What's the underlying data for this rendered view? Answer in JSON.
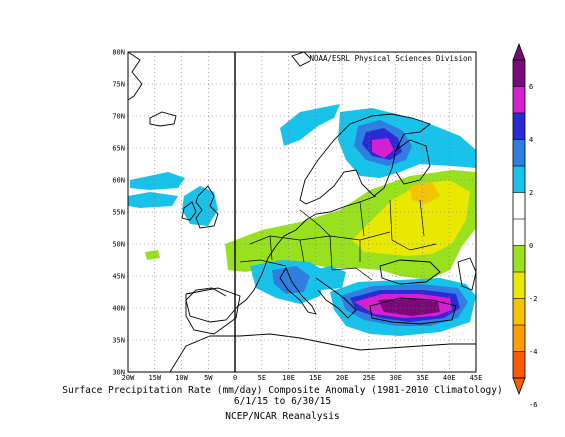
{
  "credit": "NOAA/ESRL Physical Sciences Division",
  "lat_labels": [
    "80N",
    "75N",
    "70N",
    "65N",
    "60N",
    "55N",
    "50N",
    "45N",
    "40N",
    "35N",
    "30N"
  ],
  "lon_labels": [
    "20W",
    "15W",
    "10W",
    "5W",
    "0",
    "5E",
    "10E",
    "15E",
    "20E",
    "25E",
    "30E",
    "35E",
    "40E",
    "45E"
  ],
  "colorbar": {
    "ticks": [
      "6",
      "4",
      "2",
      "0",
      "-2",
      "-4",
      "-6"
    ],
    "colors": [
      "#7a0a7a",
      "#d61fd0",
      "#2a2ad6",
      "#2f7fe0",
      "#17c3ea",
      "#ffffff",
      "#ffffff",
      "#99e01f",
      "#e8e800",
      "#f5c400",
      "#ff9d00",
      "#ff5a00"
    ]
  },
  "caption": {
    "line1": "Surface Precipitation Rate (mm/day) Composite Anomaly (1981-2010 Climatology)",
    "line2": "6/1/15 to 6/30/15",
    "line3": "NCEP/NCAR Reanalysis"
  },
  "colors": {
    "cyan": "#17c3ea",
    "blue": "#2f7fe0",
    "darkblue": "#2a2ad6",
    "green": "#99e01f",
    "yellow": "#e8e800",
    "purple": "#7a0a7a",
    "magenta": "#d61fd0"
  }
}
